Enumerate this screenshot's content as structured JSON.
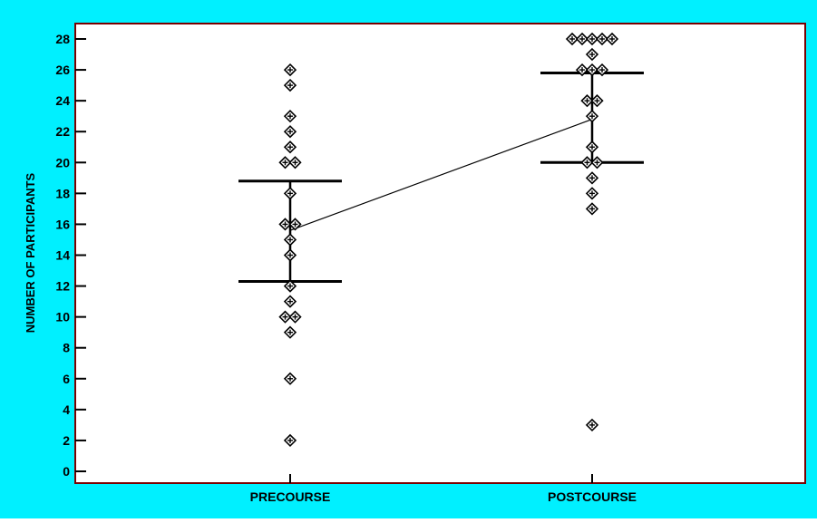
{
  "colors": {
    "background": "#00f0ff",
    "plot_area": "#ffffff",
    "plot_border": "#7a0000",
    "axis_text": "#000000",
    "marker": "#000000"
  },
  "chart_data": {
    "type": "scatter",
    "title": "",
    "xlabel": "",
    "ylabel": "NUMBER OF PARTICIPANTS",
    "categories": [
      "PRECOURSE",
      "POSTCOURSE"
    ],
    "ylim": [
      0,
      28
    ],
    "yticks": [
      0,
      2,
      4,
      6,
      8,
      10,
      12,
      14,
      16,
      18,
      20,
      22,
      24,
      26,
      28
    ],
    "grid": false,
    "legend": "none",
    "marker": "diamond-cross",
    "series": [
      {
        "category": "PRECOURSE",
        "points": [
          {
            "y": 26,
            "count": 1
          },
          {
            "y": 25,
            "count": 1
          },
          {
            "y": 23,
            "count": 1
          },
          {
            "y": 22,
            "count": 1
          },
          {
            "y": 21,
            "count": 1
          },
          {
            "y": 20,
            "count": 2
          },
          {
            "y": 18,
            "count": 1
          },
          {
            "y": 16,
            "count": 2
          },
          {
            "y": 15,
            "count": 1
          },
          {
            "y": 14,
            "count": 1
          },
          {
            "y": 12,
            "count": 1
          },
          {
            "y": 11,
            "count": 1
          },
          {
            "y": 10,
            "count": 2
          },
          {
            "y": 9,
            "count": 1
          },
          {
            "y": 6,
            "count": 1
          },
          {
            "y": 2,
            "count": 1
          }
        ],
        "mean": 15.6,
        "error_bar": {
          "upper": 18.8,
          "lower": 12.3
        }
      },
      {
        "category": "POSTCOURSE",
        "points": [
          {
            "y": 28,
            "count": 5
          },
          {
            "y": 27,
            "count": 1
          },
          {
            "y": 26,
            "count": 3
          },
          {
            "y": 24,
            "count": 2
          },
          {
            "y": 23,
            "count": 1
          },
          {
            "y": 21,
            "count": 1
          },
          {
            "y": 20,
            "count": 2
          },
          {
            "y": 19,
            "count": 1
          },
          {
            "y": 18,
            "count": 1
          },
          {
            "y": 17,
            "count": 1
          },
          {
            "y": 3,
            "count": 1
          }
        ],
        "mean": 22.8,
        "error_bar": {
          "upper": 25.8,
          "lower": 20.0
        }
      }
    ],
    "mean_line": true
  }
}
